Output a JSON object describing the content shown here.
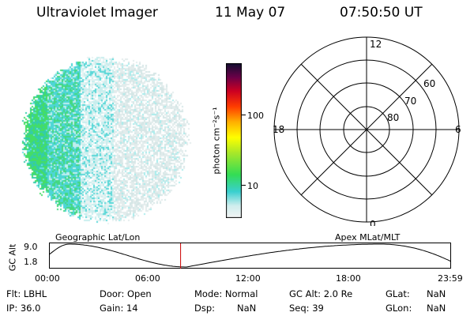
{
  "header": {
    "title": "Ultraviolet Imager",
    "date": "11 May 07",
    "time": "07:50:50 UT"
  },
  "colorbar": {
    "unit_label": "photon cm⁻²s⁻¹",
    "ticks": [
      {
        "label": "100",
        "value": 100
      },
      {
        "label": "10",
        "value": 10
      }
    ],
    "scale": "log"
  },
  "polar": {
    "mlt_labels": {
      "top": "12",
      "bottom": "0",
      "left": "18",
      "right": "6"
    },
    "lat_labels": [
      "60",
      "70",
      "80"
    ]
  },
  "timeline": {
    "left_label": "Geographic Lat/Lon",
    "right_label": "Apex MLat/MLT",
    "y_axis_label": "GC Alt",
    "y_ticks": [
      "9.0",
      "1.8"
    ],
    "x_ticks": [
      "00:00",
      "06:00",
      "12:00",
      "18:00",
      "23:59"
    ],
    "current_time_hours": 7.847,
    "marker_color": "#cc0000"
  },
  "footer": {
    "flt": "Flt: LBHL",
    "ip": "IP: 36.0",
    "door": "Door: Open",
    "gain": "Gain: 14",
    "mode": "Mode: Normal",
    "dsp": "Dsp:",
    "dsp_value": "NaN",
    "gcalt": "GC Alt: 2.0 Re",
    "seq": "Seq: 39",
    "glat": "GLat:",
    "glat_value": "NaN",
    "glon": "GLon:",
    "glon_value": "NaN"
  }
}
